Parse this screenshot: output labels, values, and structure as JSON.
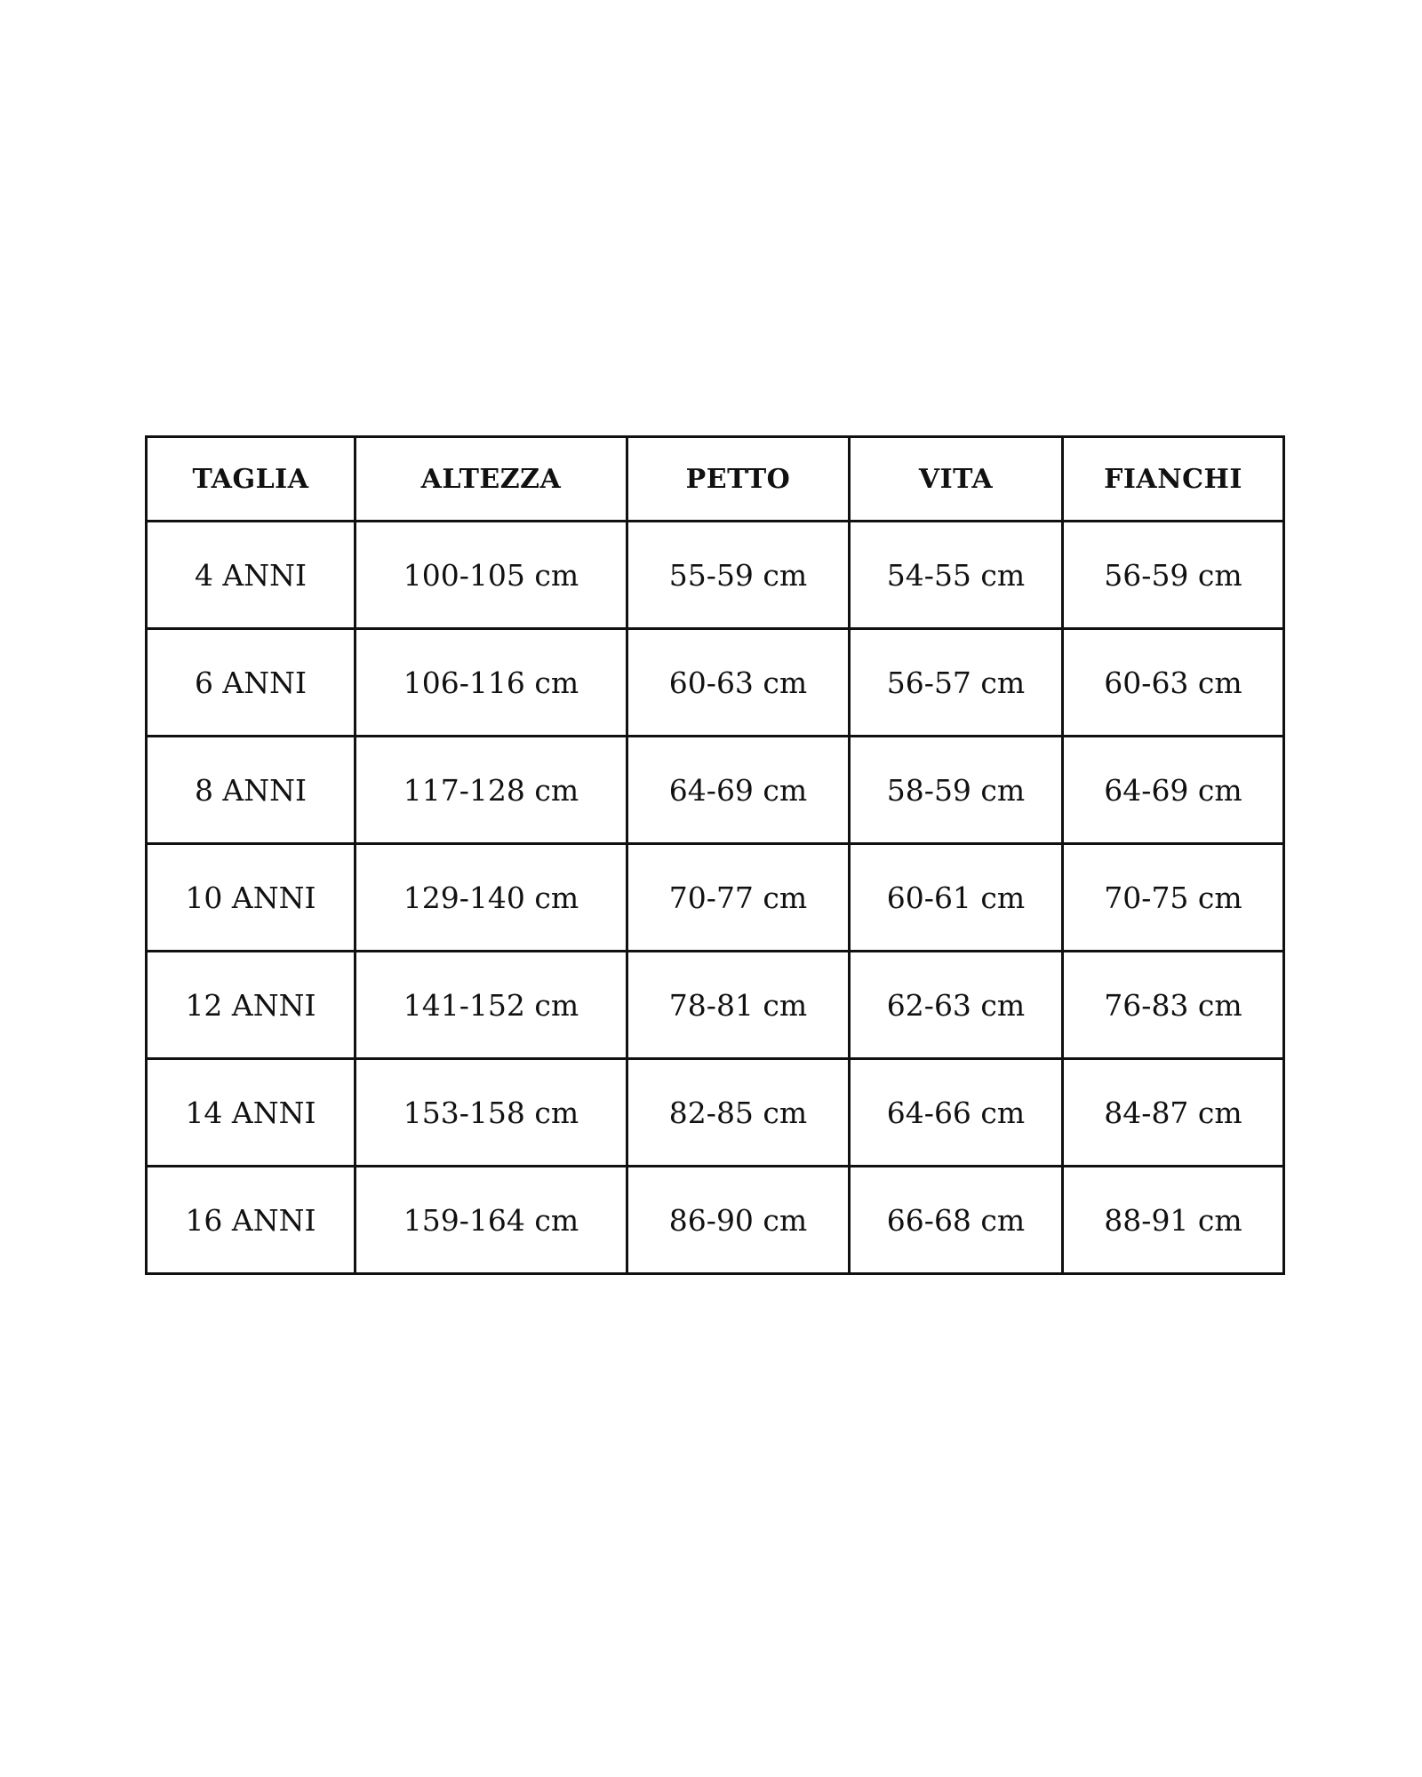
{
  "size_table": {
    "headers": [
      "TAGLIA",
      "ALTEZZA",
      "PETTO",
      "VITA",
      "FIANCHI"
    ],
    "rows": [
      [
        "4 ANNI",
        "100-105 cm",
        "55-59 cm",
        "54-55 cm",
        "56-59 cm"
      ],
      [
        "6 ANNI",
        "106-116 cm",
        "60-63 cm",
        "56-57 cm",
        "60-63 cm"
      ],
      [
        "8 ANNI",
        "117-128 cm",
        "64-69 cm",
        "58-59 cm",
        "64-69 cm"
      ],
      [
        "10 ANNI",
        "129-140 cm",
        "70-77 cm",
        "60-61 cm",
        "70-75 cm"
      ],
      [
        "12 ANNI",
        "141-152 cm",
        "78-81 cm",
        "62-63 cm",
        "76-83 cm"
      ],
      [
        "14 ANNI",
        "153-158 cm",
        "82-85 cm",
        "64-66 cm",
        "84-87 cm"
      ],
      [
        "16 ANNI",
        "159-164 cm",
        "86-90 cm",
        "66-68 cm",
        "88-91 cm"
      ]
    ]
  }
}
